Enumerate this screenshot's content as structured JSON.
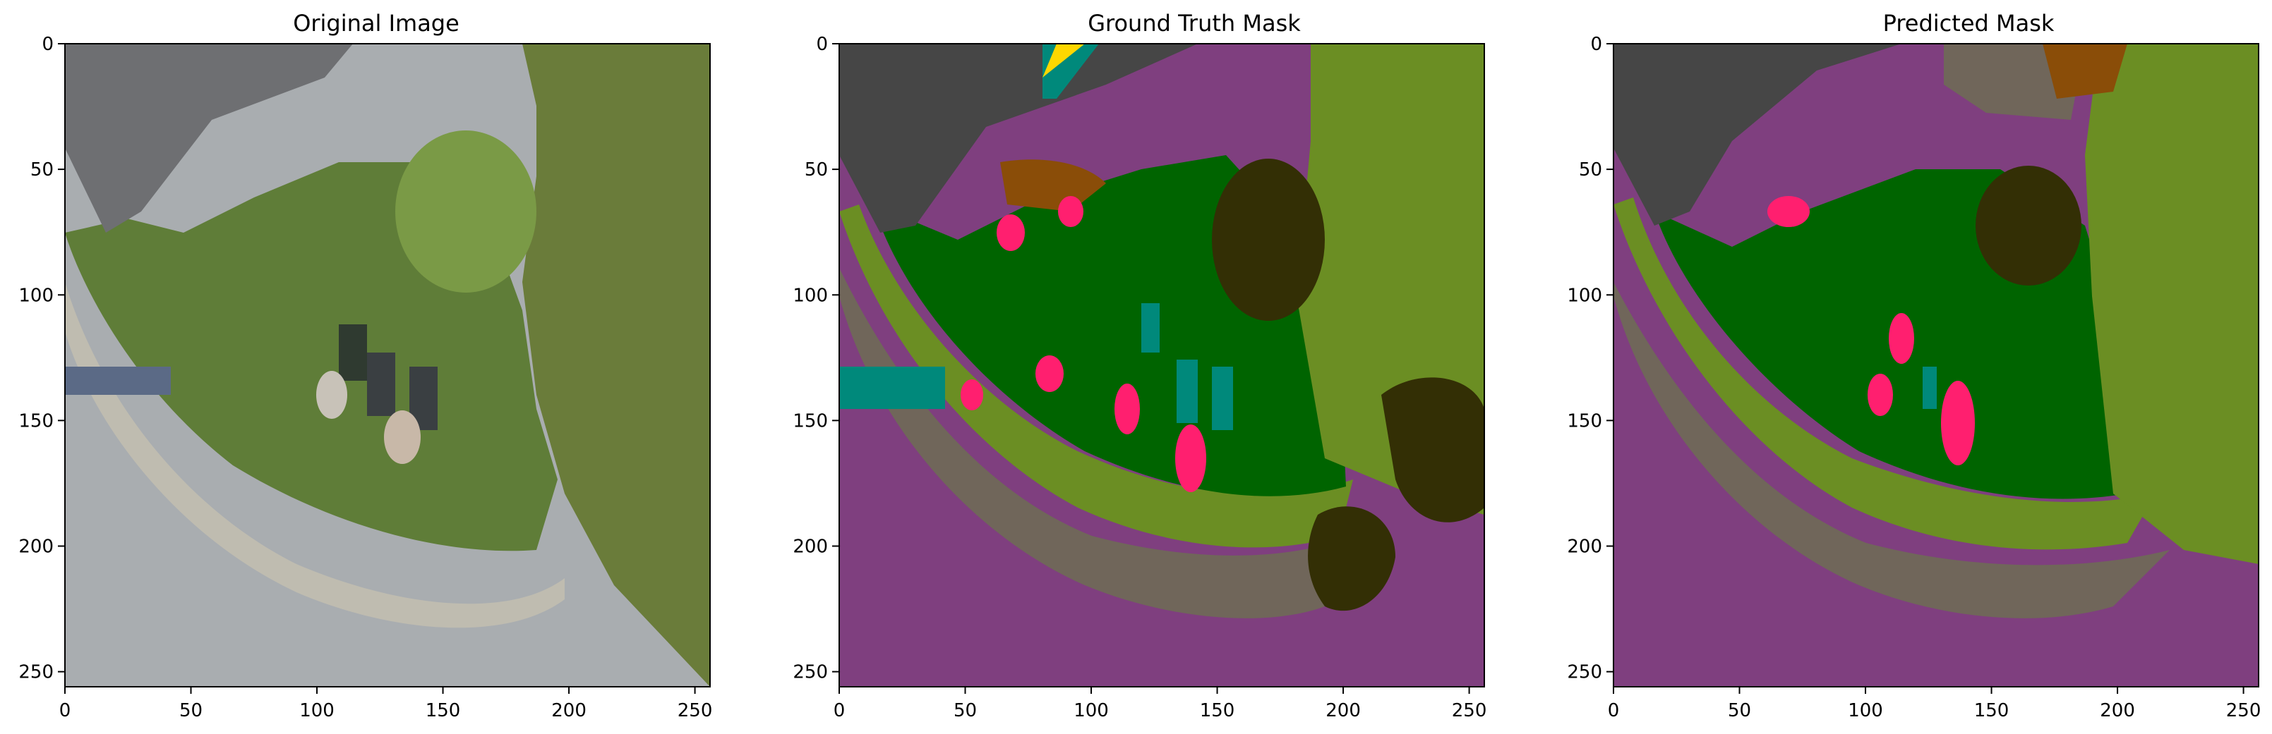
{
  "figure": {
    "panels": [
      {
        "id": "original",
        "title": "Original Image",
        "xticks": [
          "0",
          "50",
          "100",
          "150",
          "200",
          "250"
        ],
        "yticks": [
          "0",
          "50",
          "100",
          "150",
          "200",
          "250"
        ]
      },
      {
        "id": "ground-truth",
        "title": "Ground Truth Mask",
        "xticks": [
          "0",
          "50",
          "100",
          "150",
          "200",
          "250"
        ],
        "yticks": [
          "0",
          "50",
          "100",
          "150",
          "200",
          "250"
        ]
      },
      {
        "id": "predicted",
        "title": "Predicted Mask",
        "xticks": [
          "0",
          "50",
          "100",
          "150",
          "200",
          "250"
        ],
        "yticks": [
          "0",
          "50",
          "100",
          "150",
          "200",
          "250"
        ]
      }
    ],
    "axis_range": [
      0,
      256
    ],
    "tick_values": [
      0,
      50,
      100,
      150,
      200,
      250
    ]
  },
  "colors": {
    "road_purple": "#7f3f7f",
    "grass_green": "#006400",
    "vegetation_olive": "#6b8e23",
    "gravel_taupe": "#70665a",
    "roof_gray": "#464646",
    "tree_dark": "#332f05",
    "person_pink": "#ff1f6f",
    "object_teal": "#00897b",
    "soil_brown": "#8a4d08",
    "fence_slate": "#6a6a9a",
    "yellow": "#ffd700"
  }
}
